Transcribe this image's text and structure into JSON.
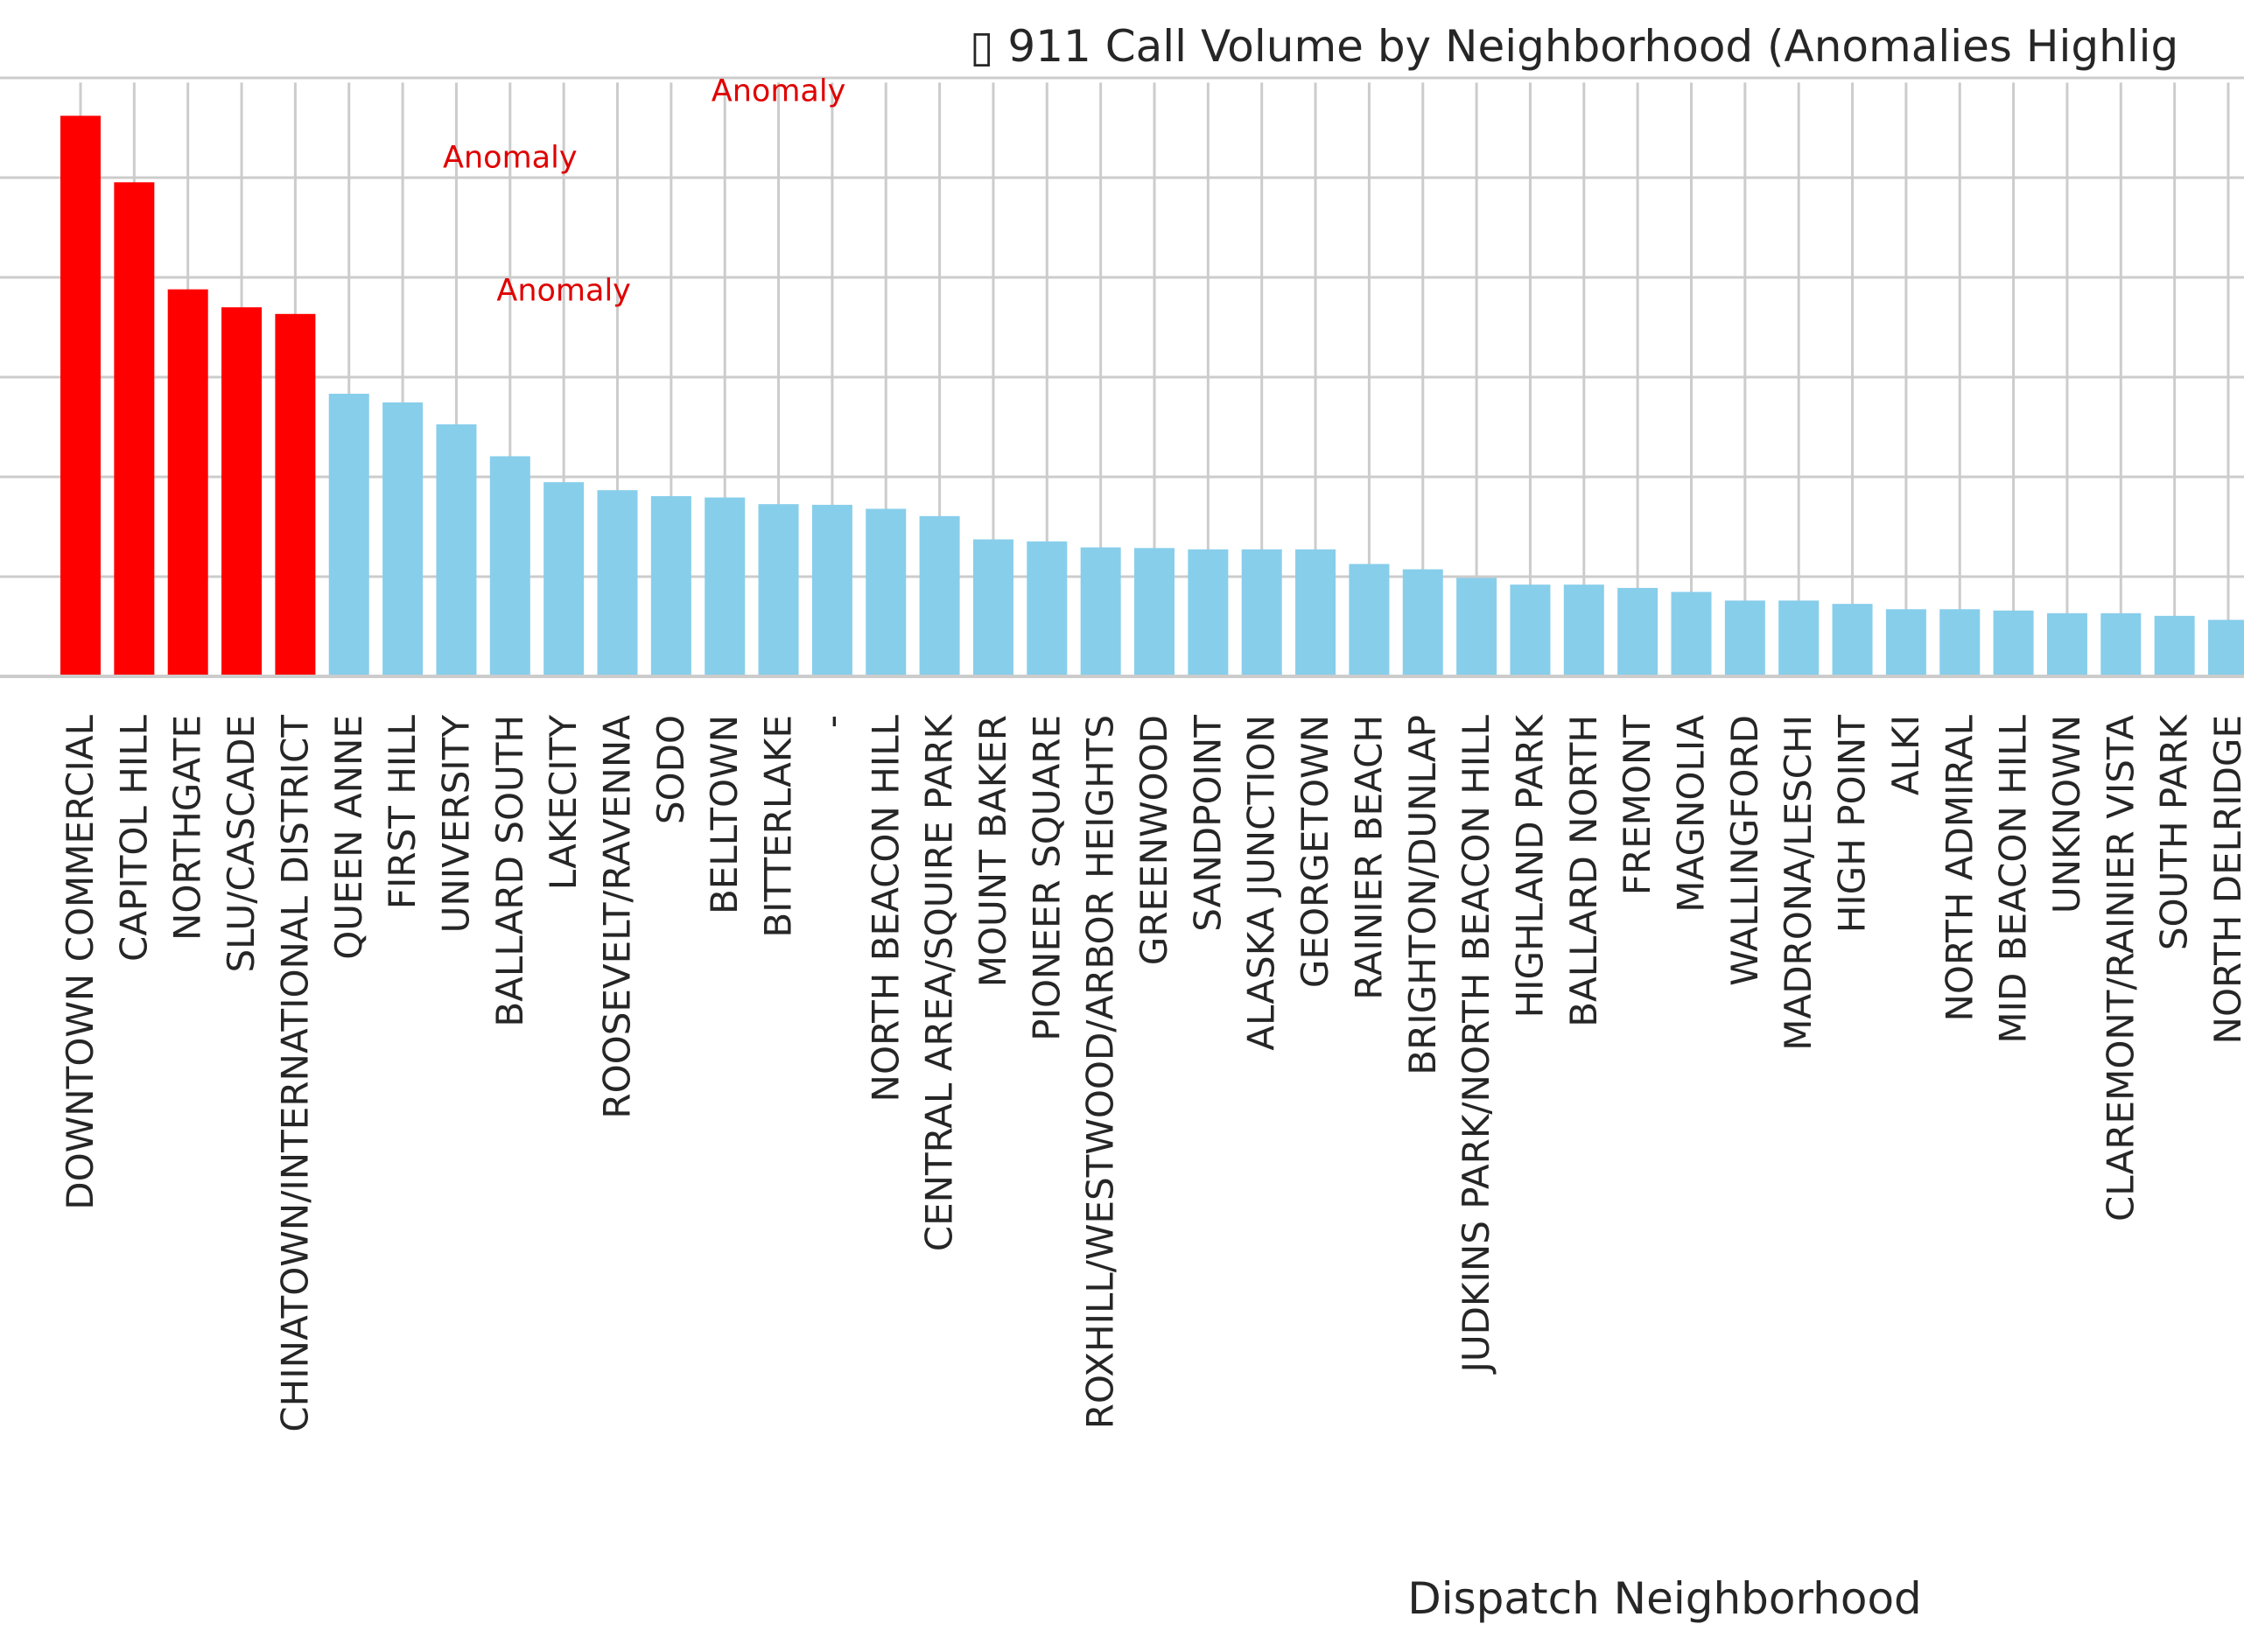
{
  "chart_data": {
    "type": "bar",
    "title": "▯ 911 Call Volume by Neighborhood (Anomalies Highlig",
    "xlabel": "Dispatch Neighborhood",
    "ylabel": "",
    "ylim": [
      0,
      100
    ],
    "grid": true,
    "categories": [
      "DOWNTOWN COMMERCIAL",
      "CAPITOL HILL",
      "NORTHGATE",
      "SLU/CASCADE",
      "CHINATOWN/INTERNATIONAL DISTRICT",
      "QUEEN ANNE",
      "FIRST HILL",
      "UNIVERSITY",
      "BALLARD SOUTH",
      "LAKECITY",
      "ROOSEVELT/RAVENNA",
      "SODO",
      "BELLTOWN",
      "BITTERLAKE",
      "-",
      "NORTH BEACON HILL",
      "CENTRAL AREA/SQUIRE PARK",
      "MOUNT BAKER",
      "PIONEER SQUARE",
      "ROXHILL/WESTWOOD/ARBOR HEIGHTS",
      "GREENWOOD",
      "SANDPOINT",
      "ALASKA JUNCTION",
      "GEORGETOWN",
      "RAINIER BEACH",
      "BRIGHTON/DUNLAP",
      "JUDKINS PARK/NORTH BEACON HILL",
      "HIGHLAND PARK",
      "BALLARD NORTH",
      "FREMONT",
      "MAGNOLIA",
      "WALLINGFORD",
      "MADRONA/LESCHI",
      "HIGH POINT",
      "ALKI",
      "NORTH ADMIRAL",
      "MID BEACON HILL",
      "UNKNOWN",
      "CLAREMONT/RAINIER VISTA",
      "SOUTH PARK",
      "NORTH DELRIDGE"
    ],
    "values": [
      84.3,
      74.3,
      58.2,
      55.5,
      54.5,
      42.5,
      41.2,
      37.9,
      33.1,
      29.2,
      28.0,
      27.1,
      26.9,
      25.9,
      25.8,
      25.2,
      24.1,
      20.6,
      20.3,
      19.4,
      19.3,
      19.1,
      19.1,
      19.1,
      16.9,
      16.1,
      14.8,
      13.8,
      13.8,
      13.3,
      12.7,
      11.4,
      11.4,
      10.9,
      10.1,
      10.1,
      9.9,
      9.5,
      9.5,
      9.1,
      8.5
    ],
    "anomalies": [
      true,
      true,
      true,
      true,
      true,
      false,
      false,
      false,
      false,
      false,
      false,
      false,
      false,
      false,
      false,
      false,
      false,
      false,
      false,
      false,
      false,
      false,
      false,
      false,
      false,
      false,
      false,
      false,
      false,
      false,
      false,
      false,
      false,
      false,
      false,
      false,
      false,
      false,
      false,
      false,
      false
    ],
    "colors": {
      "anomaly": "#ff0000",
      "normal": "#87ceeb",
      "annotation": "#e00000"
    },
    "annotations": [
      {
        "text": "Anomaly",
        "x": "BALLARD SOUTH",
        "y": 76.5
      },
      {
        "text": "Anomaly",
        "x": "BITTERLAKE",
        "y": 86.5
      },
      {
        "text": "Anomaly",
        "x": "LAKECITY",
        "y": 56.5
      }
    ]
  }
}
